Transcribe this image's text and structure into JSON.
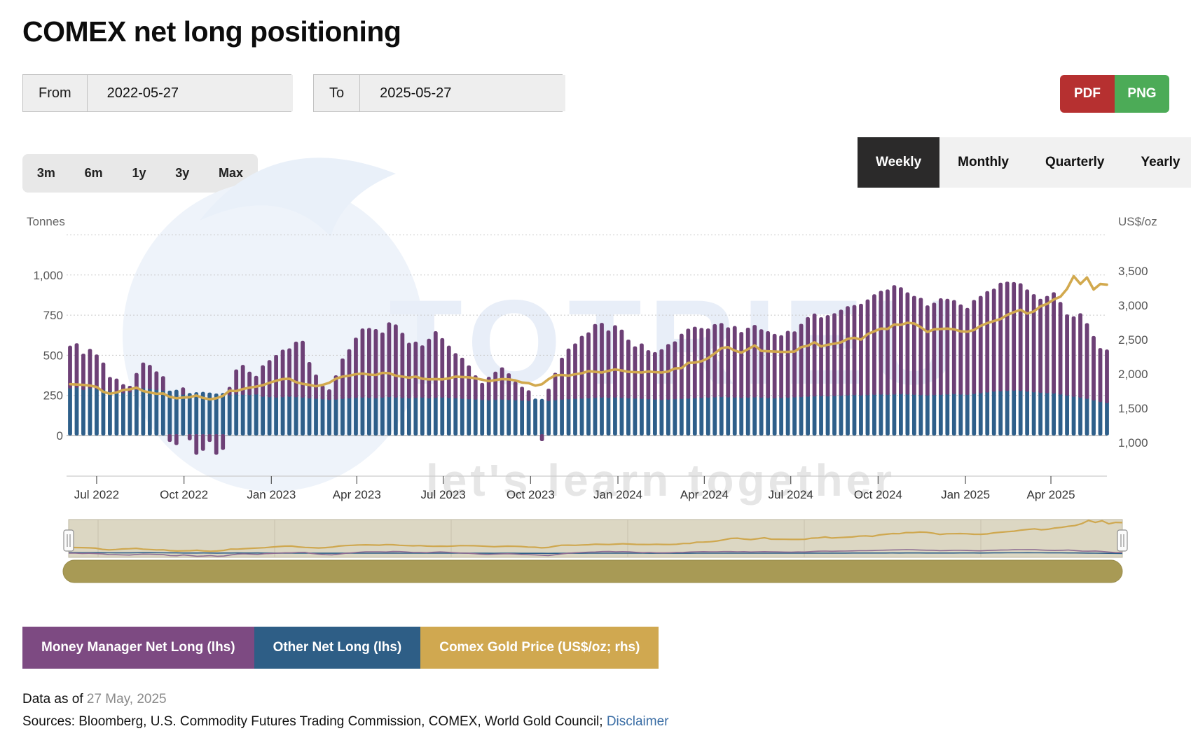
{
  "page": {
    "title": "COMEX net long positioning"
  },
  "controls": {
    "from_label": "From",
    "from_value": "2022-05-27",
    "to_label": "To",
    "to_value": "2025-05-27",
    "export": [
      {
        "label": "PDF",
        "color": "#b63030"
      },
      {
        "label": "PNG",
        "color": "#4cab57"
      }
    ],
    "ranges": [
      "3m",
      "6m",
      "1y",
      "3y",
      "Max"
    ],
    "frequencies": [
      {
        "label": "Weekly",
        "active": true
      },
      {
        "label": "Monthly",
        "active": false
      },
      {
        "label": "Quarterly",
        "active": false
      },
      {
        "label": "Yearly",
        "active": false
      }
    ]
  },
  "chart_data": {
    "type": "combo",
    "title": "COMEX net long positioning",
    "frequency": "weekly",
    "start_date": "2022-06-03",
    "end_date": "2025-05-27",
    "left_axis": {
      "title": "Tonnes",
      "ticks": [
        0,
        250,
        500,
        750,
        1000
      ],
      "range": [
        -250,
        1250
      ],
      "gridlines": "dotted"
    },
    "right_axis": {
      "title": "US$/oz",
      "ticks": [
        1000,
        1500,
        2000,
        2500,
        3000,
        3500
      ],
      "range": [
        500,
        4050
      ]
    },
    "x_ticks": [
      "Jul 2022",
      "Oct 2022",
      "Jan 2023",
      "Apr 2023",
      "Jul 2023",
      "Oct 2023",
      "Jan 2024",
      "Apr 2024",
      "Jul 2024",
      "Oct 2024",
      "Jan 2025",
      "Apr 2025"
    ],
    "series": [
      {
        "name": "Money Manager Net Long (lhs)",
        "type": "column",
        "axis": "left",
        "color": "#6d4076",
        "values": [
          250,
          260,
          210,
          230,
          200,
          155,
          75,
          70,
          40,
          25,
          90,
          145,
          135,
          100,
          75,
          -40,
          -60,
          30,
          -30,
          -120,
          -95,
          -40,
          -120,
          -90,
          35,
          140,
          170,
          130,
          100,
          180,
          215,
          250,
          280,
          285,
          330,
          338,
          210,
          135,
          70,
          50,
          135,
          235,
          290,
          360,
          415,
          420,
          415,
          390,
          450,
          440,
          390,
          330,
          335,
          310,
          355,
          400,
          355,
          310,
          265,
          240,
          195,
          135,
          90,
          130,
          160,
          185,
          150,
          100,
          70,
          50,
          0,
          -35,
          60,
          155,
          245,
          300,
          330,
          375,
          395,
          445,
          450,
          405,
          435,
          410,
          350,
          310,
          330,
          290,
          280,
          300,
          330,
          345,
          390,
          420,
          430,
          420,
          415,
          440,
          445,
          420,
          430,
          395,
          420,
          435,
          410,
          400,
          385,
          375,
          400,
          395,
          440,
          480,
          500,
          475,
          490,
          500,
          520,
          540,
          545,
          555,
          580,
          610,
          630,
          640,
          665,
          650,
          620,
          600,
          590,
          545,
          560,
          585,
          580,
          570,
          545,
          525,
          570,
          590,
          615,
          625,
          660,
          665,
          660,
          655,
          620,
          595,
          570,
          590,
          615,
          560,
          490,
          485,
          510,
          455,
          385,
          320,
          318
        ]
      },
      {
        "name": "Other Net Long (lhs)",
        "type": "column",
        "axis": "left",
        "color": "#2e5f8a",
        "values": [
          310,
          315,
          300,
          310,
          305,
          300,
          290,
          285,
          280,
          285,
          300,
          310,
          305,
          300,
          295,
          280,
          285,
          270,
          265,
          270,
          272,
          268,
          262,
          265,
          268,
          272,
          270,
          268,
          272,
          258,
          255,
          252,
          255,
          258,
          255,
          252,
          248,
          245,
          242,
          238,
          240,
          245,
          248,
          250,
          252,
          250,
          248,
          252,
          255,
          252,
          250,
          248,
          250,
          252,
          248,
          250,
          252,
          250,
          248,
          245,
          242,
          240,
          238,
          236,
          238,
          240,
          238,
          236,
          234,
          232,
          230,
          228,
          232,
          236,
          240,
          242,
          244,
          246,
          248,
          250,
          252,
          250,
          252,
          250,
          248,
          246,
          244,
          242,
          240,
          238,
          240,
          242,
          244,
          246,
          248,
          250,
          252,
          254,
          256,
          254,
          252,
          250,
          252,
          254,
          252,
          250,
          248,
          250,
          252,
          254,
          256,
          258,
          260,
          262,
          260,
          262,
          264,
          266,
          268,
          266,
          268,
          270,
          272,
          270,
          272,
          274,
          272,
          270,
          268,
          266,
          268,
          270,
          272,
          274,
          272,
          270,
          275,
          280,
          285,
          290,
          292,
          294,
          296,
          294,
          290,
          286,
          282,
          280,
          278,
          272,
          265,
          258,
          252,
          245,
          235,
          225,
          218
        ]
      },
      {
        "name": "Comex Gold Price (US$/oz; rhs)",
        "type": "line",
        "axis": "right",
        "color": "#d2a94e",
        "values": [
          1850,
          1845,
          1840,
          1830,
          1810,
          1740,
          1710,
          1730,
          1765,
          1775,
          1800,
          1750,
          1730,
          1710,
          1715,
          1665,
          1645,
          1655,
          1660,
          1685,
          1650,
          1630,
          1645,
          1680,
          1755,
          1750,
          1780,
          1800,
          1815,
          1835,
          1870,
          1900,
          1925,
          1930,
          1880,
          1855,
          1840,
          1820,
          1840,
          1870,
          1930,
          1960,
          1975,
          1995,
          2005,
          1990,
          1985,
          2015,
          2010,
          1975,
          1960,
          1945,
          1960,
          1930,
          1920,
          1925,
          1920,
          1935,
          1960,
          1955,
          1950,
          1935,
          1915,
          1895,
          1910,
          1925,
          1920,
          1905,
          1875,
          1865,
          1830,
          1850,
          1925,
          1980,
          1985,
          1975,
          1995,
          2010,
          2040,
          2030,
          2020,
          2045,
          2065,
          2050,
          2030,
          2025,
          2020,
          2035,
          2025,
          2020,
          2035,
          2080,
          2085,
          2160,
          2165,
          2185,
          2230,
          2300,
          2375,
          2390,
          2340,
          2310,
          2360,
          2415,
          2335,
          2330,
          2325,
          2320,
          2320,
          2325,
          2390,
          2410,
          2460,
          2400,
          2425,
          2440,
          2460,
          2510,
          2525,
          2500,
          2580,
          2620,
          2660,
          2655,
          2720,
          2715,
          2745,
          2735,
          2680,
          2610,
          2650,
          2655,
          2660,
          2650,
          2620,
          2615,
          2640,
          2700,
          2740,
          2770,
          2800,
          2860,
          2900,
          2935,
          2880,
          2910,
          2985,
          3020,
          3085,
          3125,
          3240,
          3425,
          3310,
          3405,
          3230,
          3310,
          3300
        ]
      }
    ]
  },
  "legend": [
    {
      "label": "Money Manager Net Long (lhs)",
      "color": "#7d4a82"
    },
    {
      "label": "Other Net Long (lhs)",
      "color": "#2e5e86"
    },
    {
      "label": "Comex Gold Price (US$/oz; rhs)",
      "color": "#d0a850"
    }
  ],
  "watermark": {
    "brand": "TOTRIEU",
    "tagline": "let's learn together"
  },
  "footer": {
    "asof_prefix": "Data as of ",
    "asof_date": "27 May, 2025",
    "sources_prefix": "Sources: Bloomberg, U.S. Commodity Futures Trading Commission, COMEX, World Gold Council; ",
    "disclaimer_label": "Disclaimer"
  }
}
